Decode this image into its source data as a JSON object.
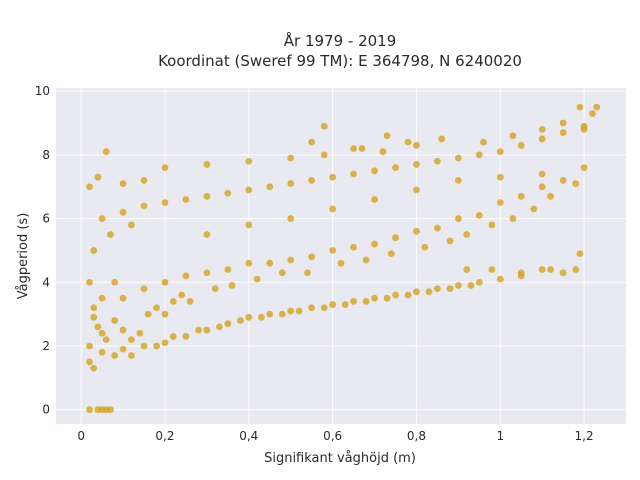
{
  "chart_data": {
    "type": "scatter",
    "title_line1": "År 1979 - 2019",
    "title_line2": "Koordinat (Sweref 99 TM): E 364798, N 6240020",
    "xlabel": "Signifikant våghöjd (m)",
    "ylabel": "Vågperiod (s)",
    "xlim": [
      -0.06,
      1.3
    ],
    "ylim": [
      -0.45,
      10.1
    ],
    "x_ticks": [
      0,
      0.2,
      0.4,
      0.6,
      0.8,
      1,
      1.2
    ],
    "x_tick_labels": [
      "0",
      "0,2",
      "0,4",
      "0,6",
      "0,8",
      "1",
      "1,2"
    ],
    "y_ticks": [
      0,
      2,
      4,
      6,
      8,
      10
    ],
    "y_tick_labels": [
      "0",
      "2",
      "4",
      "6",
      "8",
      "10"
    ],
    "grid": true,
    "colors": {
      "marker": "#d4a21f",
      "plot_bg": "#e9e9f1",
      "grid": "#ffffff"
    },
    "series": [
      {
        "points": [
          [
            0.02,
            1.5
          ],
          [
            0.03,
            1.3
          ],
          [
            0.04,
            2.6
          ],
          [
            0.05,
            1.8
          ],
          [
            0.06,
            2.2
          ],
          [
            0.08,
            1.7
          ],
          [
            0.1,
            1.9
          ],
          [
            0.12,
            1.7
          ],
          [
            0.15,
            2.0
          ],
          [
            0.18,
            2.0
          ],
          [
            0.2,
            2.1
          ],
          [
            0.22,
            2.3
          ],
          [
            0.25,
            2.3
          ],
          [
            0.28,
            2.5
          ],
          [
            0.3,
            2.5
          ],
          [
            0.33,
            2.6
          ],
          [
            0.35,
            2.7
          ],
          [
            0.38,
            2.8
          ],
          [
            0.4,
            2.9
          ],
          [
            0.43,
            2.9
          ],
          [
            0.45,
            3.0
          ],
          [
            0.48,
            3.0
          ],
          [
            0.5,
            3.1
          ],
          [
            0.52,
            3.1
          ],
          [
            0.55,
            3.2
          ],
          [
            0.58,
            3.2
          ],
          [
            0.6,
            3.3
          ],
          [
            0.63,
            3.3
          ],
          [
            0.65,
            3.4
          ],
          [
            0.68,
            3.4
          ],
          [
            0.7,
            3.5
          ],
          [
            0.73,
            3.5
          ],
          [
            0.75,
            3.6
          ],
          [
            0.78,
            3.6
          ],
          [
            0.8,
            3.7
          ],
          [
            0.83,
            3.7
          ],
          [
            0.85,
            3.8
          ],
          [
            0.88,
            3.8
          ],
          [
            0.9,
            3.9
          ],
          [
            0.93,
            3.9
          ],
          [
            0.95,
            4.0
          ],
          [
            1.0,
            4.1
          ],
          [
            1.05,
            4.2
          ],
          [
            1.1,
            4.4
          ],
          [
            1.15,
            4.3
          ],
          [
            0.05,
            3.5
          ],
          [
            0.08,
            4.0
          ],
          [
            0.1,
            3.5
          ],
          [
            0.15,
            3.8
          ],
          [
            0.2,
            4.0
          ],
          [
            0.25,
            4.2
          ],
          [
            0.3,
            4.3
          ],
          [
            0.35,
            4.4
          ],
          [
            0.4,
            4.6
          ],
          [
            0.45,
            4.6
          ],
          [
            0.5,
            4.7
          ],
          [
            0.55,
            4.8
          ],
          [
            0.6,
            5.0
          ],
          [
            0.65,
            5.1
          ],
          [
            0.7,
            5.2
          ],
          [
            0.75,
            5.4
          ],
          [
            0.8,
            5.6
          ],
          [
            0.85,
            5.7
          ],
          [
            0.9,
            6.0
          ],
          [
            0.95,
            6.1
          ],
          [
            1.0,
            6.5
          ],
          [
            1.05,
            6.7
          ],
          [
            1.1,
            7.0
          ],
          [
            1.15,
            7.2
          ],
          [
            1.2,
            7.6
          ],
          [
            0.03,
            5.0
          ],
          [
            0.05,
            6.0
          ],
          [
            0.07,
            5.5
          ],
          [
            0.1,
            6.2
          ],
          [
            0.12,
            5.8
          ],
          [
            0.15,
            6.4
          ],
          [
            0.2,
            6.5
          ],
          [
            0.25,
            6.6
          ],
          [
            0.3,
            6.7
          ],
          [
            0.35,
            6.8
          ],
          [
            0.4,
            6.9
          ],
          [
            0.45,
            7.0
          ],
          [
            0.5,
            7.1
          ],
          [
            0.55,
            7.2
          ],
          [
            0.6,
            7.3
          ],
          [
            0.65,
            7.4
          ],
          [
            0.7,
            7.5
          ],
          [
            0.75,
            7.6
          ],
          [
            0.8,
            7.7
          ],
          [
            0.85,
            7.8
          ],
          [
            0.9,
            7.9
          ],
          [
            0.95,
            8.0
          ],
          [
            1.0,
            8.1
          ],
          [
            1.05,
            8.3
          ],
          [
            1.1,
            8.5
          ],
          [
            1.15,
            8.7
          ],
          [
            1.2,
            8.9
          ],
          [
            1.22,
            9.3
          ],
          [
            1.19,
            9.5
          ],
          [
            1.23,
            9.5
          ],
          [
            0.06,
            8.1
          ],
          [
            0.02,
            7.0
          ],
          [
            0.04,
            7.3
          ],
          [
            0.1,
            7.1
          ],
          [
            0.15,
            7.2
          ],
          [
            0.2,
            7.6
          ],
          [
            0.3,
            7.7
          ],
          [
            0.4,
            7.8
          ],
          [
            0.5,
            7.9
          ],
          [
            0.58,
            8.0
          ],
          [
            0.65,
            8.2
          ],
          [
            0.72,
            8.1
          ],
          [
            0.8,
            8.3
          ],
          [
            0.86,
            8.5
          ],
          [
            0.96,
            8.4
          ],
          [
            1.03,
            8.6
          ],
          [
            1.1,
            8.8
          ],
          [
            1.15,
            9.0
          ],
          [
            1.2,
            8.8
          ],
          [
            0.78,
            8.4
          ],
          [
            0.73,
            8.6
          ],
          [
            0.58,
            8.9
          ],
          [
            0.55,
            8.4
          ],
          [
            0.67,
            8.2
          ],
          [
            1.0,
            7.3
          ],
          [
            1.1,
            7.4
          ],
          [
            0.02,
            0.0
          ],
          [
            0.04,
            0.0
          ],
          [
            0.05,
            0.0
          ],
          [
            0.06,
            0.0
          ],
          [
            0.07,
            0.0
          ],
          [
            0.03,
            2.9
          ],
          [
            0.02,
            4.0
          ],
          [
            0.03,
            3.2
          ],
          [
            0.05,
            2.4
          ],
          [
            0.02,
            2.0
          ],
          [
            0.08,
            2.8
          ],
          [
            0.1,
            2.5
          ],
          [
            0.12,
            2.2
          ],
          [
            0.14,
            2.4
          ],
          [
            0.16,
            3.0
          ],
          [
            0.18,
            3.2
          ],
          [
            0.2,
            3.0
          ],
          [
            0.22,
            3.4
          ],
          [
            0.24,
            3.6
          ],
          [
            0.26,
            3.4
          ],
          [
            0.32,
            3.8
          ],
          [
            0.36,
            3.9
          ],
          [
            0.42,
            4.1
          ],
          [
            0.48,
            4.3
          ],
          [
            0.54,
            4.3
          ],
          [
            0.62,
            4.6
          ],
          [
            0.68,
            4.7
          ],
          [
            0.74,
            4.9
          ],
          [
            0.82,
            5.1
          ],
          [
            0.88,
            5.3
          ],
          [
            0.92,
            5.5
          ],
          [
            0.98,
            5.8
          ],
          [
            1.03,
            6.0
          ],
          [
            1.08,
            6.3
          ],
          [
            1.12,
            6.7
          ],
          [
            1.18,
            7.1
          ],
          [
            0.92,
            4.4
          ],
          [
            0.98,
            4.4
          ],
          [
            1.05,
            4.3
          ],
          [
            1.12,
            4.4
          ],
          [
            1.18,
            4.4
          ],
          [
            1.19,
            4.9
          ],
          [
            0.3,
            5.5
          ],
          [
            0.4,
            5.8
          ],
          [
            0.5,
            6.0
          ],
          [
            0.6,
            6.3
          ],
          [
            0.7,
            6.6
          ],
          [
            0.8,
            6.9
          ],
          [
            0.9,
            7.2
          ]
        ]
      }
    ]
  }
}
